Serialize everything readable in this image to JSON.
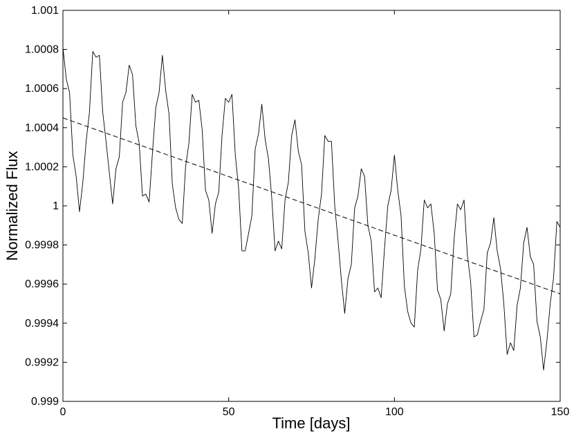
{
  "chart_data": {
    "type": "line",
    "xlabel": "Time [days]",
    "ylabel": "Normalized Flux",
    "xlim": [
      0,
      150
    ],
    "xticks": [
      0,
      50,
      100,
      150
    ],
    "ylim": [
      0.999,
      1.001
    ],
    "yticks": [
      0.999,
      0.9992,
      0.9994,
      0.9996,
      0.9998,
      1,
      1.0002,
      1.0004,
      1.0006,
      1.0008,
      1.001
    ],
    "grid": false,
    "series": [
      {
        "color": "#000000",
        "dash": false,
        "x": [
          0,
          1,
          2,
          3,
          4,
          5,
          6,
          7,
          8,
          9,
          10,
          11,
          12,
          13,
          14,
          15,
          16,
          17,
          18,
          19,
          20,
          21,
          22,
          23,
          24,
          25,
          26,
          27,
          28,
          29,
          30,
          31,
          32,
          33,
          34,
          35,
          36,
          37,
          38,
          39,
          40,
          41,
          42,
          43,
          44,
          45,
          46,
          47,
          48,
          49,
          50,
          51,
          52,
          53,
          54,
          55,
          56,
          57,
          58,
          59,
          60,
          61,
          62,
          63,
          64,
          65,
          66,
          67,
          68,
          69,
          70,
          71,
          72,
          73,
          74,
          75,
          76,
          77,
          78,
          79,
          80,
          81,
          82,
          83,
          84,
          85,
          86,
          87,
          88,
          89,
          90,
          91,
          92,
          93,
          94,
          95,
          96,
          97,
          98,
          99,
          100,
          101,
          102,
          103,
          104,
          105,
          106,
          107,
          108,
          109,
          110,
          111,
          112,
          113,
          114,
          115,
          116,
          117,
          118,
          119,
          120,
          121,
          122,
          123,
          124,
          125,
          126,
          127,
          128,
          129,
          130,
          131,
          132,
          133,
          134,
          135,
          136,
          137,
          138,
          139,
          140,
          141,
          142,
          143,
          144,
          145,
          146,
          147,
          148,
          149,
          150
        ],
        "values": [
          1.00081,
          1.00065,
          1.00058,
          1.00026,
          1.00015,
          0.99997,
          1.00012,
          1.00033,
          1.00048,
          1.00079,
          1.00076,
          1.00077,
          1.00048,
          1.00033,
          1.00017,
          1.00001,
          1.00019,
          1.00025,
          1.00053,
          1.00058,
          1.00072,
          1.00067,
          1.00041,
          1.00032,
          1.00005,
          1.00006,
          1.00002,
          1.00027,
          1.0005,
          1.00058,
          1.00077,
          1.00059,
          1.00047,
          1.00011,
          0.99999,
          0.99993,
          0.99991,
          1.0002,
          1.00032,
          1.00057,
          1.00053,
          1.00054,
          1.00039,
          1.00008,
          1.00003,
          0.99986,
          1.00001,
          1.00007,
          1.00036,
          1.00055,
          1.00053,
          1.00057,
          1.00026,
          1.00009,
          0.99977,
          0.99977,
          0.99986,
          0.99995,
          1.00029,
          1.00037,
          1.00052,
          1.00034,
          1.00024,
          1.00004,
          0.99977,
          0.99982,
          0.99978,
          1.00003,
          1.00012,
          1.00036,
          1.00044,
          1.00028,
          1.00021,
          0.99987,
          0.99976,
          0.99958,
          0.99973,
          0.99993,
          1.00006,
          1.00036,
          1.00033,
          1.00033,
          1,
          0.99982,
          0.99962,
          0.99945,
          0.99963,
          0.9997,
          0.99999,
          1.00005,
          1.00019,
          1.00015,
          0.9999,
          0.99982,
          0.99956,
          0.99958,
          0.99953,
          0.99978,
          1,
          1.00008,
          1.00026,
          1.00008,
          0.99995,
          0.99959,
          0.99946,
          0.9994,
          0.99938,
          0.99967,
          0.99978,
          1.00003,
          0.99999,
          1.00001,
          0.99986,
          0.99957,
          0.99952,
          0.99936,
          0.9995,
          0.99955,
          0.99983,
          1.00001,
          0.99998,
          1.00003,
          0.99975,
          0.99961,
          0.99933,
          0.99934,
          0.99941,
          0.99947,
          0.99976,
          0.99981,
          0.99994,
          0.99977,
          0.99968,
          0.9995,
          0.99924,
          0.9993,
          0.99926,
          0.99949,
          0.99958,
          0.99981,
          0.99989,
          0.99974,
          0.9997,
          0.99941,
          0.99933,
          0.99916,
          0.99931,
          0.9995,
          0.99963,
          0.99992,
          0.99989
        ]
      },
      {
        "color": "#000000",
        "dash": true,
        "x": [
          0,
          150
        ],
        "values": [
          1.00045,
          0.99955
        ]
      }
    ]
  }
}
